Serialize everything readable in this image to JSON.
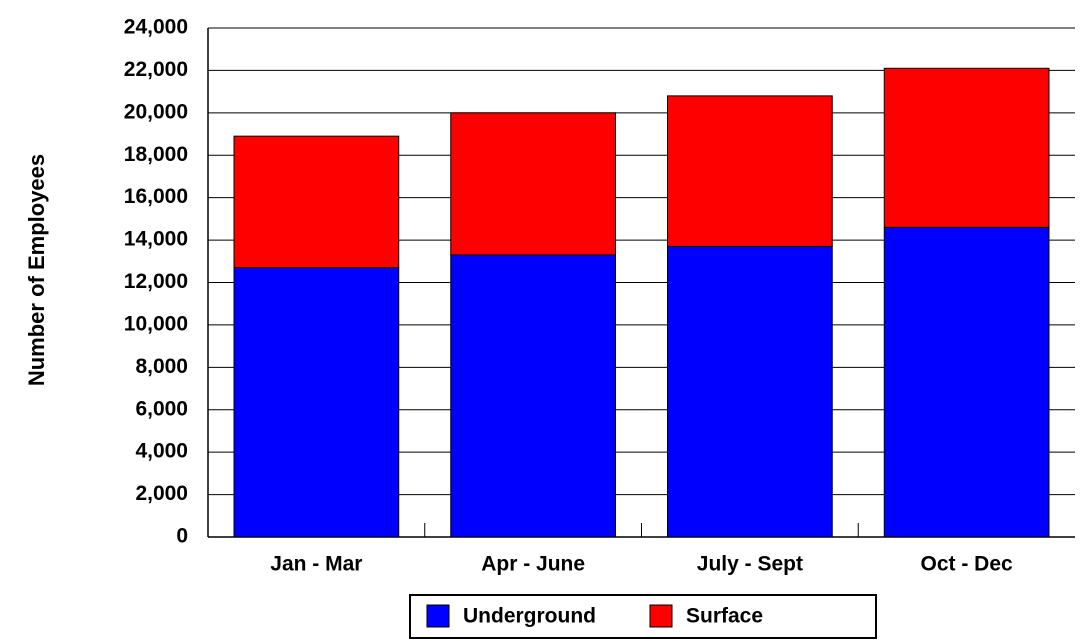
{
  "chart_data": {
    "type": "stacked_bar",
    "y_label": "Number of Employees",
    "categories": [
      "Jan - Mar",
      "Apr - June",
      "July - Sept",
      "Oct - Dec"
    ],
    "series": [
      {
        "name": "Underground",
        "color": "#0000ff",
        "values": [
          12700,
          13300,
          13700,
          14600
        ]
      },
      {
        "name": "Surface",
        "color": "#ff0000",
        "values": [
          6200,
          6700,
          7100,
          7500
        ]
      }
    ],
    "ylim": [
      0,
      24000
    ],
    "yticks": [
      0,
      {
        "value": 2000,
        "label": "2,000"
      },
      {
        "value": 4000,
        "label": "4,000"
      },
      {
        "value": 6000,
        "label": "6,000"
      },
      {
        "value": 8000,
        "label": "8,000"
      },
      {
        "value": 10000,
        "label": "10,000"
      },
      {
        "value": 12000,
        "label": "12,000"
      },
      {
        "value": 14000,
        "label": "14,000"
      },
      {
        "value": 16000,
        "label": "16,000"
      },
      {
        "value": 18000,
        "label": "18,000"
      },
      {
        "value": 20000,
        "label": "20,000"
      },
      {
        "value": 22000,
        "label": "22,000"
      },
      {
        "value": 24000,
        "label": "24,000"
      }
    ],
    "grid": true
  }
}
